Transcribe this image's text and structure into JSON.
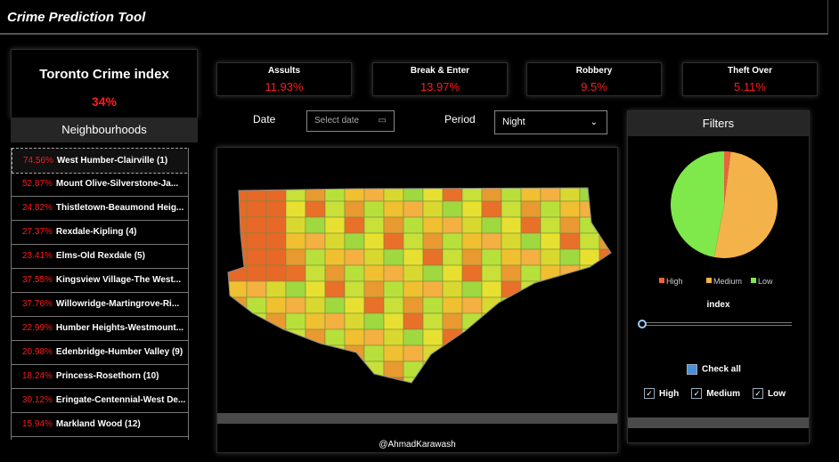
{
  "header": {
    "title": "Crime Prediction Tool"
  },
  "index_card": {
    "title": "Toronto Crime index",
    "value": "34%"
  },
  "neighbourhoods": {
    "title": "Neighbourhoods",
    "items": [
      {
        "percent": "74.56%",
        "name": "West Humber-Clairville (1)"
      },
      {
        "percent": "52.87%",
        "name": "Mount Olive-Silverstone-Ja..."
      },
      {
        "percent": "24.82%",
        "name": "Thistletown-Beaumond Heig..."
      },
      {
        "percent": "27.37%",
        "name": "Rexdale-Kipling (4)"
      },
      {
        "percent": "23.41%",
        "name": "Elms-Old Rexdale (5)"
      },
      {
        "percent": "37.55%",
        "name": "Kingsview Village-The West..."
      },
      {
        "percent": "37.76%",
        "name": "Willowridge-Martingrove-Ri..."
      },
      {
        "percent": "22.99%",
        "name": "Humber Heights-Westmount..."
      },
      {
        "percent": "20.98%",
        "name": "Edenbridge-Humber Valley (9)"
      },
      {
        "percent": "18.24%",
        "name": "Princess-Rosethorn (10)"
      },
      {
        "percent": "30.12%",
        "name": "Eringate-Centennial-West De..."
      },
      {
        "percent": "15.94%",
        "name": "Markland Wood (12)"
      }
    ]
  },
  "kpis": [
    {
      "label": "Assults",
      "value": "11.93%"
    },
    {
      "label": "Break & Enter",
      "value": "13.97%"
    },
    {
      "label": "Robbery",
      "value": "9.5%"
    },
    {
      "label": "Theft Over",
      "value": "5.11%"
    }
  ],
  "controls": {
    "date_label": "Date",
    "date_placeholder": "Select date",
    "period_label": "Period",
    "period_value": "Night"
  },
  "map": {
    "credit": "@AhmadKarawash"
  },
  "filters": {
    "title": "Filters",
    "pie": {
      "type": "pie",
      "series": [
        {
          "name": "High",
          "color": "#e8643c",
          "value": 2
        },
        {
          "name": "Medium",
          "color": "#f4b24a",
          "value": 51
        },
        {
          "name": "Low",
          "color": "#7fe84a",
          "value": 47
        }
      ]
    },
    "slider_label": "index",
    "check_all": "Check all",
    "options": [
      "High",
      "Medium",
      "Low"
    ]
  }
}
